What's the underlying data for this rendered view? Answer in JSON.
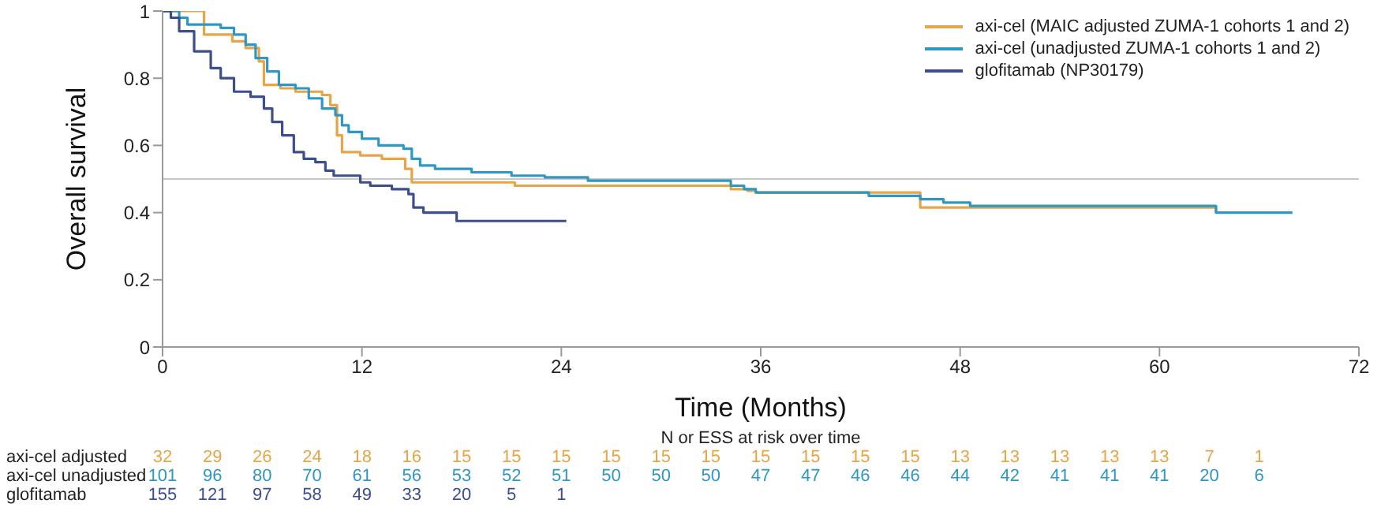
{
  "chart_data": {
    "type": "step",
    "xlabel": "Time (Months)",
    "ylabel": "Overall survival",
    "xlim": [
      0,
      72
    ],
    "xticks": [
      0,
      12,
      24,
      36,
      48,
      60,
      72
    ],
    "ylim": [
      0,
      1
    ],
    "yticks": [
      0,
      0.2,
      0.4,
      0.6,
      0.8,
      1
    ],
    "legend": "top right",
    "grid": false,
    "marker": "none",
    "line_style": "solid",
    "ref_lines": [
      {
        "axis": "y",
        "value": 0.5,
        "color": "#c8c8c8"
      }
    ],
    "series": [
      {
        "name": "axi-cel (MAIC adjusted ZUMA-1 cohorts 1 and 2)",
        "color": "#e8a445",
        "x": [
          0,
          2.5,
          4.2,
          5.0,
          5.8,
          6.1,
          7.1,
          8.0,
          9.6,
          10.1,
          10.5,
          10.8,
          11.9,
          13.2,
          14.6,
          15.0,
          21.2,
          34.2,
          35.2,
          35.7,
          45.6,
          63.4
        ],
        "values": [
          1,
          0.93,
          0.91,
          0.89,
          0.85,
          0.78,
          0.77,
          0.76,
          0.75,
          0.72,
          0.63,
          0.58,
          0.57,
          0.56,
          0.53,
          0.49,
          0.48,
          0.47,
          0.465,
          0.46,
          0.415,
          0.4
        ]
      },
      {
        "name": "axi-cel (unadjusted ZUMA-1 cohorts 1 and 2)",
        "color": "#2f97c4",
        "x": [
          0,
          1,
          1.5,
          3.5,
          4.3,
          5,
          5.6,
          6.3,
          7,
          8,
          8.8,
          9.6,
          10.4,
          10.8,
          11.2,
          12,
          13,
          14.5,
          15,
          15.5,
          16.4,
          18.6,
          21,
          23,
          25.6,
          34.2,
          35,
          35.7,
          42.5,
          45.6,
          47,
          48.6,
          63.4,
          68
        ],
        "values": [
          1,
          0.98,
          0.96,
          0.95,
          0.93,
          0.9,
          0.86,
          0.82,
          0.78,
          0.77,
          0.74,
          0.71,
          0.69,
          0.66,
          0.64,
          0.62,
          0.6,
          0.59,
          0.56,
          0.54,
          0.53,
          0.52,
          0.51,
          0.505,
          0.495,
          0.48,
          0.47,
          0.46,
          0.45,
          0.44,
          0.43,
          0.42,
          0.4,
          0.4
        ]
      },
      {
        "name": "glofitamab (NP30179)",
        "color": "#3d4e8f",
        "x": [
          0,
          0.5,
          1,
          1.9,
          2.9,
          3.5,
          4.3,
          5.3,
          6.1,
          6.6,
          7.2,
          7.9,
          8.5,
          9.2,
          9.8,
          10.3,
          11.9,
          12.5,
          13.8,
          14.8,
          15.1,
          15.7,
          17.7,
          24.3
        ],
        "values": [
          1,
          0.98,
          0.94,
          0.88,
          0.83,
          0.8,
          0.76,
          0.745,
          0.71,
          0.67,
          0.63,
          0.58,
          0.56,
          0.55,
          0.525,
          0.51,
          0.49,
          0.48,
          0.47,
          0.455,
          0.415,
          0.4,
          0.375,
          0.375
        ]
      }
    ],
    "annotations": [
      "N or ESS at risk over time",
      "axi-cel adjusted",
      "32",
      "29",
      "26",
      "24",
      "18",
      "16",
      "15",
      "15",
      "15",
      "15",
      "15",
      "15",
      "15",
      "15",
      "15",
      "15",
      "13",
      "13",
      "13",
      "13",
      "13",
      "7",
      "1",
      "axi-cel unadjusted",
      "101",
      "96",
      "80",
      "70",
      "61",
      "56",
      "53",
      "52",
      "51",
      "50",
      "50",
      "50",
      "47",
      "47",
      "46",
      "46",
      "44",
      "42",
      "41",
      "41",
      "41",
      "20",
      "6",
      "glofitamab",
      "155",
      "121",
      "97",
      "58",
      "49",
      "33",
      "20",
      "5",
      "1"
    ]
  }
}
